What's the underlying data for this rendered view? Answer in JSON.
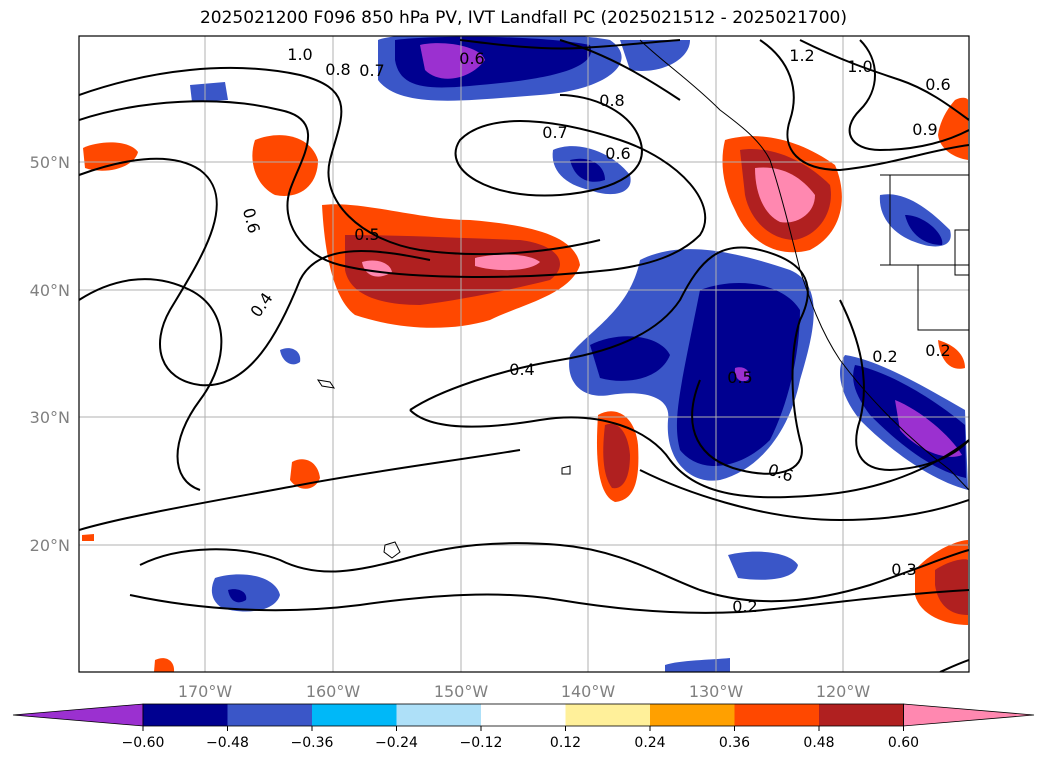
{
  "title": "2025021200 F096 850 hPa PV, IVT Landfall PC (2025021512 - 2025021700)",
  "axes": {
    "lon_ticks": [
      "170°W",
      "160°W",
      "150°W",
      "140°W",
      "130°W",
      "120°W"
    ],
    "lat_ticks": [
      "50°N",
      "40°N",
      "30°N",
      "20°N"
    ]
  },
  "colorbar": {
    "tick_labels": [
      "−0.60",
      "−0.48",
      "−0.36",
      "−0.24",
      "−0.12",
      "0.12",
      "0.24",
      "0.36",
      "0.48",
      "0.60"
    ],
    "colors": [
      "#9b30d0",
      "#000090",
      "#3a56c8",
      "#00b8f8",
      "#aee0f8",
      "#ffffff",
      "#fff09a",
      "#ffa000",
      "#ff4800",
      "#b02020",
      "#ff88b0"
    ]
  },
  "contour_labels": [
    "1.0",
    "0.8",
    "0.7",
    "0.6",
    "1.2",
    "1.0",
    "0.6",
    "0.8",
    "0.7",
    "0.6",
    "0.9",
    "0.6",
    "0.5",
    "0.4",
    "0.4",
    "0.5",
    "0.6",
    "0.3",
    "0.2",
    "0.2",
    "0.2"
  ]
}
